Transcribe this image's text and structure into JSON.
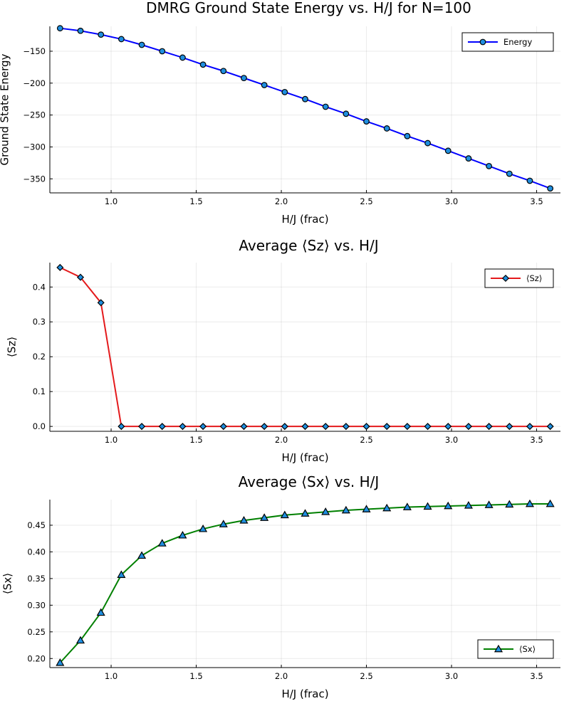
{
  "chart_data": [
    {
      "type": "line",
      "title": "DMRG Ground State Energy vs. H/J for N=100",
      "xlabel": "H/J (frac)",
      "ylabel": "Ground State Energy",
      "xlim": [
        0.64,
        3.64
      ],
      "ylim": [
        -372,
        -111
      ],
      "xticks": [
        1.0,
        1.5,
        2.0,
        2.5,
        3.0,
        3.5
      ],
      "xtick_labels": [
        "1.0",
        "1.5",
        "2.0",
        "2.5",
        "3.0",
        "3.5"
      ],
      "yticks": [
        -150,
        -200,
        -250,
        -300,
        -350
      ],
      "ytick_labels": [
        "-150",
        "-200",
        "-250",
        "-300",
        "-350"
      ],
      "grid": true,
      "legend_position": "top-right",
      "series": [
        {
          "name": "Energy",
          "color": "#0000ff",
          "marker": "circle",
          "x": [
            0.7,
            0.82,
            0.94,
            1.06,
            1.18,
            1.3,
            1.42,
            1.54,
            1.66,
            1.78,
            1.9,
            2.02,
            2.14,
            2.26,
            2.38,
            2.5,
            2.62,
            2.74,
            2.86,
            2.98,
            3.1,
            3.22,
            3.34,
            3.46,
            3.58
          ],
          "y": [
            -114,
            -118,
            -124,
            -131,
            -140,
            -150,
            -160,
            -171,
            -181,
            -192,
            -203,
            -214,
            -225,
            -237,
            -248,
            -260,
            -271,
            -283,
            -294,
            -306,
            -318,
            -330,
            -342,
            -353,
            -365
          ]
        }
      ]
    },
    {
      "type": "line",
      "title": "Average ⟨Sz⟩ vs. H/J",
      "xlabel": "H/J (frac)",
      "ylabel": "⟨Sz⟩",
      "xlim": [
        0.64,
        3.64
      ],
      "ylim": [
        -0.014,
        0.47
      ],
      "xticks": [
        1.0,
        1.5,
        2.0,
        2.5,
        3.0,
        3.5
      ],
      "xtick_labels": [
        "1.0",
        "1.5",
        "2.0",
        "2.5",
        "3.0",
        "3.5"
      ],
      "yticks": [
        0.0,
        0.1,
        0.2,
        0.3,
        0.4
      ],
      "ytick_labels": [
        "0.0",
        "0.1",
        "0.2",
        "0.3",
        "0.4"
      ],
      "grid": true,
      "legend_position": "top-right",
      "series": [
        {
          "name": "⟨Sz⟩",
          "color": "#e41a1c",
          "marker": "diamond",
          "x": [
            0.7,
            0.82,
            0.94,
            1.06,
            1.18,
            1.3,
            1.42,
            1.54,
            1.66,
            1.78,
            1.9,
            2.02,
            2.14,
            2.26,
            2.38,
            2.5,
            2.62,
            2.74,
            2.86,
            2.98,
            3.1,
            3.22,
            3.34,
            3.46,
            3.58
          ],
          "y": [
            0.456,
            0.428,
            0.355,
            0.0,
            0.0,
            0.0,
            0.0,
            0.0,
            0.0,
            0.0,
            0.0,
            0.0,
            0.0,
            0.0,
            0.0,
            0.0,
            0.0,
            0.0,
            0.0,
            0.0,
            0.0,
            0.0,
            0.0,
            0.0,
            0.0
          ]
        }
      ]
    },
    {
      "type": "line",
      "title": "Average ⟨Sx⟩ vs. H/J",
      "xlabel": "H/J (frac)",
      "ylabel": "⟨Sx⟩",
      "xlim": [
        0.64,
        3.64
      ],
      "ylim": [
        0.183,
        0.498
      ],
      "xticks": [
        1.0,
        1.5,
        2.0,
        2.5,
        3.0,
        3.5
      ],
      "xtick_labels": [
        "1.0",
        "1.5",
        "2.0",
        "2.5",
        "3.0",
        "3.5"
      ],
      "yticks": [
        0.2,
        0.25,
        0.3,
        0.35,
        0.4,
        0.45
      ],
      "ytick_labels": [
        "0.20",
        "0.25",
        "0.30",
        "0.35",
        "0.40",
        "0.45"
      ],
      "grid": true,
      "legend_position": "bottom-right",
      "series": [
        {
          "name": "⟨Sx⟩",
          "color": "#008000",
          "marker": "triangle",
          "x": [
            0.7,
            0.82,
            0.94,
            1.06,
            1.18,
            1.3,
            1.42,
            1.54,
            1.66,
            1.78,
            1.9,
            2.02,
            2.14,
            2.26,
            2.38,
            2.5,
            2.62,
            2.74,
            2.86,
            2.98,
            3.1,
            3.22,
            3.34,
            3.46,
            3.58
          ],
          "y": [
            0.192,
            0.234,
            0.286,
            0.357,
            0.393,
            0.416,
            0.431,
            0.443,
            0.452,
            0.459,
            0.464,
            0.469,
            0.472,
            0.475,
            0.478,
            0.48,
            0.482,
            0.484,
            0.485,
            0.486,
            0.487,
            0.488,
            0.489,
            0.49,
            0.49
          ]
        }
      ]
    }
  ],
  "marker_fill_color": "#1f8fe0"
}
